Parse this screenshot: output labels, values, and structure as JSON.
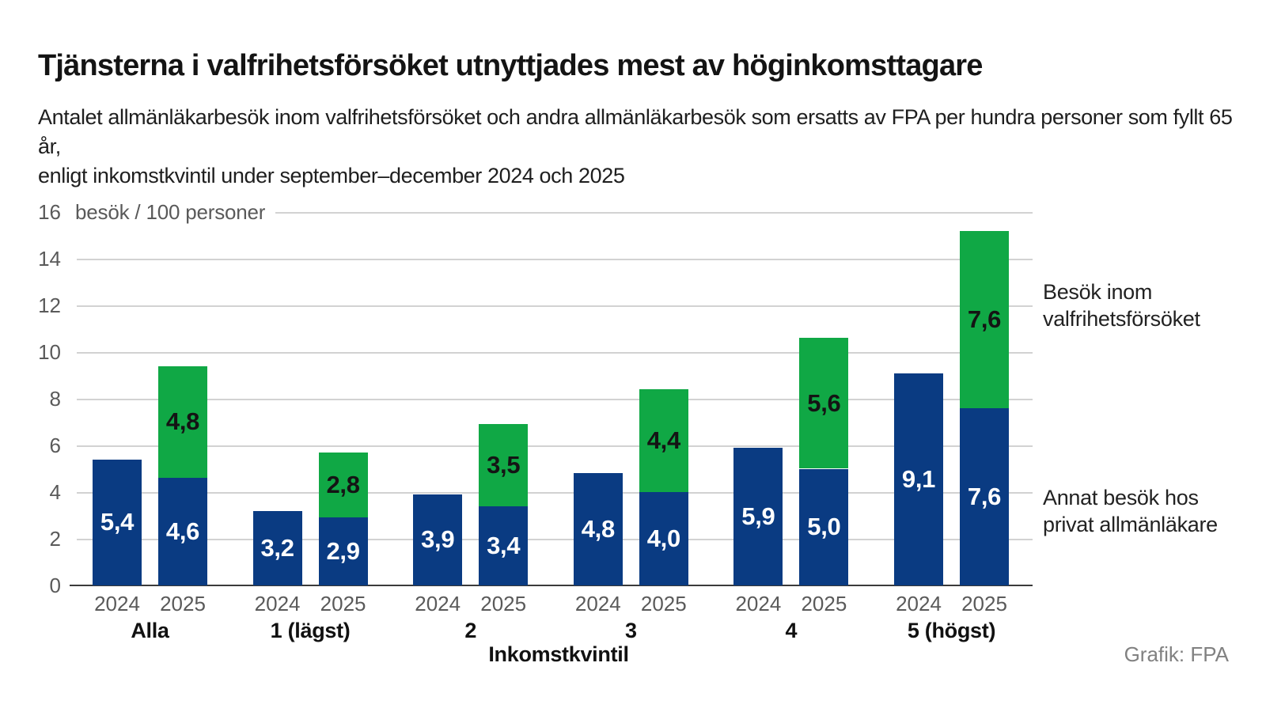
{
  "header": {
    "title": "Tjänsterna i valfrihetsförsöket utnyttjades mest av höginkomsttagare",
    "subtitle1": "Antalet allmänläkarbesök inom valfrihetsförsöket och andra allmänläkarbesök som ersatts av FPA per hundra personer som fyllt 65 år,",
    "subtitle2": "enligt inkomstkvintil under september–december 2024 och 2025"
  },
  "chart_data": {
    "type": "bar",
    "stacked": true,
    "title": "Tjänsterna i valfrihetsförsöket utnyttjades mest av höginkomsttagare",
    "unit_label": "besök / 100 personer",
    "xlabel": "Inkomstkvintil",
    "ylim": [
      0,
      16
    ],
    "yticks": [
      0,
      2,
      4,
      6,
      8,
      10,
      12,
      14,
      16
    ],
    "grid": true,
    "legend_position": "right",
    "decimal_separator": ",",
    "categories": [
      "Alla",
      "1 (lägst)",
      "2",
      "3",
      "4",
      "5 (högst)"
    ],
    "years": [
      "2024",
      "2025"
    ],
    "series": [
      {
        "name": "Annat besök hos privat allmänläkare",
        "color": "#0a3b82",
        "label_color": "#ffffff",
        "values": {
          "2024": [
            5.4,
            3.2,
            3.9,
            4.8,
            5.9,
            9.1
          ],
          "2025": [
            4.6,
            2.9,
            3.4,
            4.0,
            5.0,
            7.6
          ]
        }
      },
      {
        "name": "Besök inom valfrihetsförsöket",
        "color": "#10a845",
        "label_color": "#141414",
        "values": {
          "2025": [
            4.8,
            2.8,
            3.5,
            4.4,
            5.6,
            7.6
          ]
        }
      }
    ]
  },
  "legend": {
    "green_label": "Besök inom\nvalfrihetsförsöket",
    "blue_label": "Annat besök hos\nprivat allmänläkare"
  },
  "footer": {
    "credit": "Grafik: FPA"
  }
}
